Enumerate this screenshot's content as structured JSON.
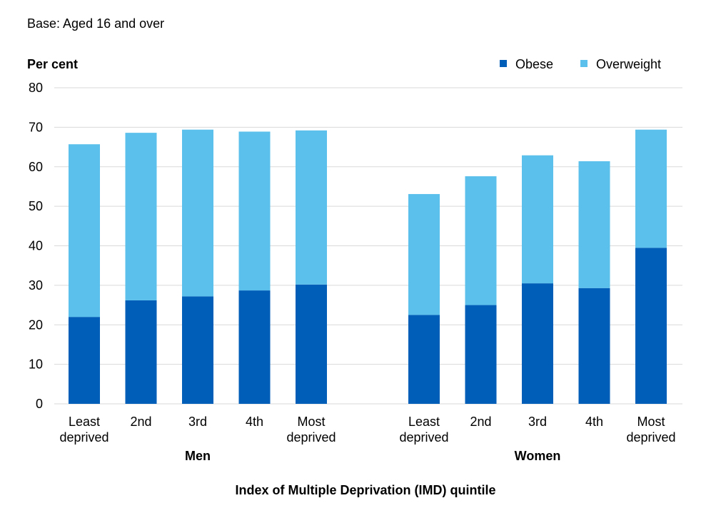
{
  "subtitle": "Base: Aged 16 and over",
  "y_unit_label": "Per cent",
  "x_axis_title": "Index of Multiple Deprivation (IMD) quintile",
  "legend": [
    {
      "label": "Obese",
      "color": "#005EB8"
    },
    {
      "label": "Overweight",
      "color": "#5BC0EB"
    }
  ],
  "chart_data": {
    "type": "bar",
    "stacked": true,
    "title": "",
    "ylabel": "Per cent",
    "xlabel": "Index of Multiple Deprivation (IMD) quintile",
    "ylim": [
      0,
      80
    ],
    "yticks": [
      0,
      10,
      20,
      30,
      40,
      50,
      60,
      70,
      80
    ],
    "grid": true,
    "legend_position": "top-right",
    "groups": [
      "Men",
      "Women"
    ],
    "categories": [
      "Least deprived",
      "2nd",
      "3rd",
      "4th",
      "Most deprived"
    ],
    "series": [
      {
        "name": "Obese",
        "color": "#005EB8",
        "values": {
          "Men": [
            22,
            26.2,
            27.2,
            28.7,
            30.2
          ],
          "Women": [
            22.5,
            25,
            30.5,
            29.3,
            39.5
          ]
        }
      },
      {
        "name": "Overweight",
        "color": "#5BC0EB",
        "values": {
          "Men": [
            43.7,
            42.4,
            42.2,
            40.2,
            39
          ],
          "Women": [
            30.6,
            32.6,
            32.4,
            32.1,
            29.9
          ]
        }
      }
    ]
  }
}
